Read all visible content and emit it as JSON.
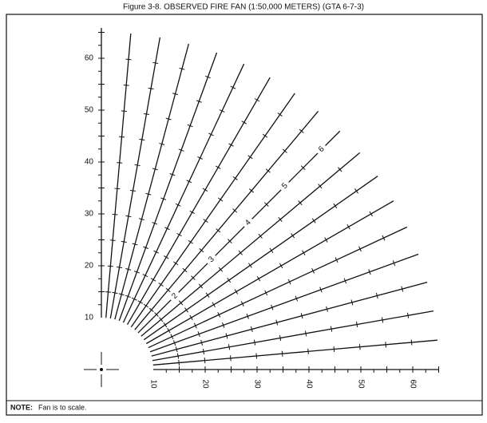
{
  "title": "Figure 3-8.  OBSERVED FIRE FAN (1:50,000 METERS) (GTA 6-7-3)",
  "note": {
    "label": "NOTE:",
    "text": "Fan is to scale."
  },
  "vertical_scale": [
    10,
    20,
    30,
    40,
    50,
    60
  ],
  "horizontal_scale": [
    10,
    20,
    30,
    40,
    50,
    60
  ],
  "ray_labels": [
    2,
    3,
    4,
    5,
    6
  ]
}
